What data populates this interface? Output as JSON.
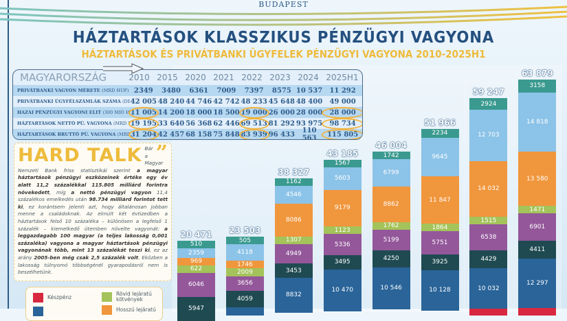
{
  "header": {
    "city": "BUDAPEST",
    "title": "HÁZTARTÁSOK KLASSZIKUS PÉNZÜGYI VAGYONA",
    "subtitle": "HÁZTARTÁSOK ÉS PRIVÁTBANKI ÜGYFELEK PÉNZÜGYI VAGYONA 2010-2025H1"
  },
  "table": {
    "country": "MAGYARORSZÁG",
    "years": [
      "2010",
      "2015",
      "2020",
      "2021",
      "2022",
      "2023",
      "2024",
      "2025H1"
    ],
    "highlight_color": "#f0b23c",
    "rows": [
      {
        "label": "PRIVÁTBANKI VAGYON MÉRETE",
        "unit": "(MRD HUF)",
        "values": [
          "2349",
          "3480",
          "6361",
          "7009",
          "7397",
          "8575",
          "10 537",
          "11 292"
        ],
        "highlight": []
      },
      {
        "label": "PRIVÁTBANKI ÜGYFÉLSZÁMLÁK SZÁMA",
        "unit": "(DB)",
        "values": [
          "42 005",
          "48 240",
          "44 746",
          "42 742",
          "48 233",
          "45 648",
          "48 400",
          "49 000"
        ],
        "highlight": []
      },
      {
        "label": "HAZAI PÉNZÜGYI VAGYONI ELIT",
        "unit": "(300 MIÓ HUF/FŐ)",
        "values": [
          "11 005",
          "14 200",
          "18 000",
          "18 500",
          "19 000",
          "26 000",
          "28 000",
          "28 000"
        ],
        "highlight": [
          0,
          4,
          7
        ]
      },
      {
        "label": "HÁZTARTÁSOK NETTÓ PÜ. VAGYONA",
        "unit": "(MRD HUF)",
        "values": [
          "19 195",
          "33 640",
          "56 368",
          "62 446",
          "69 513",
          "81 292",
          "93 975",
          "98 734"
        ],
        "highlight": [
          0,
          4,
          7
        ]
      },
      {
        "label": "HÁZTARTÁSOK BRUTTÓ PÜ. VAGYONA",
        "unit": "(MRD HUF)",
        "values": [
          "31 204",
          "42 457",
          "68 158",
          "75 848",
          "83 939",
          "96 433",
          "110 563",
          "115 805"
        ],
        "highlight": [
          0,
          4,
          7
        ]
      }
    ]
  },
  "hard_talk": {
    "title": "HARD TALK",
    "quote_mark": "”",
    "segments": [
      {
        "t": "Bár a Magyar Nemzeti Bank friss statisztikái szerint ",
        "b": false
      },
      {
        "t": "a magyar háztartások pénzügyi eszközeinek értéke egy év alatt 11,2 százalékkal 115.805 milliárd forintra növekedett",
        "b": true
      },
      {
        "t": ", míg ",
        "b": false
      },
      {
        "t": "a nettó pénzügyi vagyon",
        "b": true
      },
      {
        "t": " 11,4 százalékos emelkedés után ",
        "b": false
      },
      {
        "t": "98.734 milliárd forintot tett ki",
        "b": true
      },
      {
        "t": ", ez korántsem jelenti azt, hogy általánosan jobban menne a családoknak. Az elmúlt két évtizedben a háztartások felső 10 százaléka – különösen a legfelső 1 százalék – kiemelkedő ütemben növelte vagyonát: ",
        "b": false
      },
      {
        "t": "a leggazdagabb 100 magyar (a teljes lakosság 0,001 százaléka) vagyona a magyar háztartások pénzügyi vagyonának több, mint 13 százalékát teszi ki",
        "b": true
      },
      {
        "t": ", ez az arány ",
        "b": false
      },
      {
        "t": "2005-ben még csak 2,5 százalék volt",
        "b": true
      },
      {
        "t": ". Eközben a lakosság túlnyomó többségénél gyarapodásról nem is beszélhetünk.",
        "b": false
      }
    ]
  },
  "legend": {
    "items": [
      {
        "label": "Készpénz",
        "color": "#d8283f"
      },
      {
        "label": "Rövid lejáratú kötvények",
        "color": "#a4c35a"
      },
      {
        "label": "",
        "color": "#2a6499"
      },
      {
        "label": "Hosszú lejáratú",
        "color": "#f0963c"
      }
    ]
  },
  "chart_data": {
    "type": "stacked-bar",
    "totals": [
      20471,
      23503,
      38327,
      43185,
      46004,
      51966,
      59247,
      63879
    ],
    "series": [
      {
        "color": "#3a9a8f",
        "values": [
          510,
          505,
          1162,
          1567,
          1742,
          2234,
          2924,
          3158
        ]
      },
      {
        "color": "#8cc3e8",
        "values": [
          2359,
          4118,
          4546,
          5603,
          6799,
          9645,
          12703,
          14818
        ]
      },
      {
        "color": "#f0963c",
        "values": [
          969,
          1746,
          8086,
          9179,
          8862,
          11847,
          14032,
          13580
        ]
      },
      {
        "color": "#a4c35a",
        "values": [
          622,
          2009,
          1307,
          1123,
          1762,
          1864,
          1515,
          1471
        ]
      },
      {
        "color": "#93579a",
        "values": [
          6046,
          3656,
          4949,
          5336,
          5199,
          5751,
          6538,
          6901
        ]
      },
      {
        "color": "#1f4a52",
        "values": [
          5947,
          4059,
          3453,
          3495,
          4250,
          3925,
          4429,
          4411
        ]
      },
      {
        "color": "#2a6499",
        "values": [
          null,
          null,
          8832,
          10470,
          10546,
          10128,
          10032,
          12297
        ]
      },
      {
        "color": "#d8283f",
        "values": [
          null,
          null,
          null,
          null,
          null,
          null,
          null,
          null
        ]
      }
    ]
  }
}
